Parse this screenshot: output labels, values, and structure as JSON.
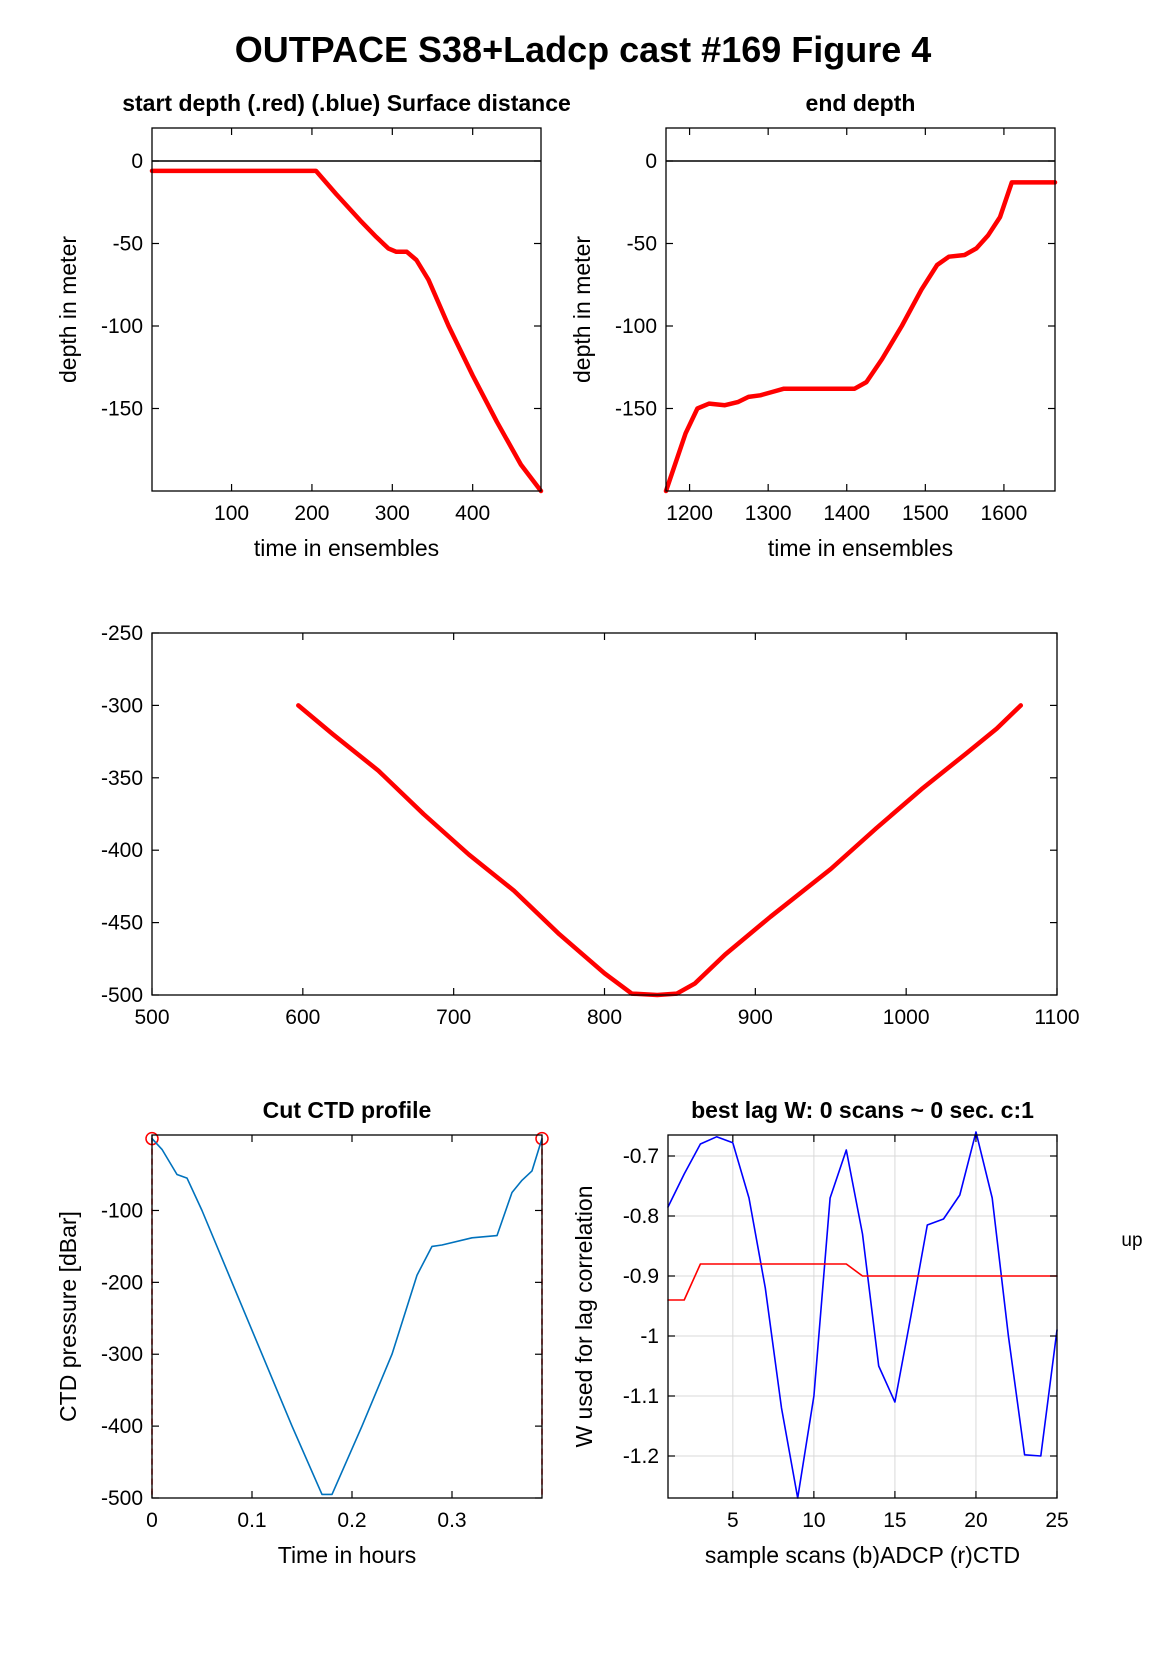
{
  "figure": {
    "title": "OUTPACE S38+Ladcp cast #169   Figure 4",
    "side_note": "up"
  },
  "chart_data": [
    {
      "id": "start-depth",
      "type": "line",
      "title": "start depth (.red) (.blue) Surface distance",
      "xlabel": "time in ensembles",
      "ylabel": "depth in meter",
      "xlim": [
        1,
        485
      ],
      "ylim": [
        -200,
        20
      ],
      "xticks": [
        100,
        200,
        300,
        400
      ],
      "yticks": [
        0,
        -50,
        -100,
        -150
      ],
      "grid": false,
      "reference_line_y": 0,
      "series": [
        {
          "color": "#ff0000",
          "x": [
            1,
            50,
            100,
            150,
            205,
            230,
            260,
            280,
            295,
            305,
            318,
            330,
            345,
            370,
            400,
            430,
            460,
            485
          ],
          "y": [
            -6,
            -6,
            -6,
            -6,
            -6,
            -20,
            -36,
            -46,
            -53,
            -55,
            -55,
            -60,
            -72,
            -100,
            -130,
            -158,
            -184,
            -200
          ]
        }
      ]
    },
    {
      "id": "end-depth",
      "type": "line",
      "title": "end depth",
      "xlabel": "time in ensembles",
      "ylabel": "depth in meter",
      "xlim": [
        1170,
        1665
      ],
      "ylim": [
        -200,
        20
      ],
      "xticks": [
        1200,
        1300,
        1400,
        1500,
        1600
      ],
      "yticks": [
        0,
        -50,
        -100,
        -150
      ],
      "grid": false,
      "reference_line_y": 0,
      "series": [
        {
          "color": "#ff0000",
          "x": [
            1170,
            1195,
            1210,
            1225,
            1245,
            1262,
            1275,
            1290,
            1305,
            1320,
            1350,
            1380,
            1410,
            1425,
            1445,
            1470,
            1495,
            1515,
            1530,
            1550,
            1565,
            1580,
            1595,
            1610,
            1640,
            1665
          ],
          "y": [
            -200,
            -165,
            -150,
            -147,
            -148,
            -146,
            -143,
            -142,
            -140,
            -138,
            -138,
            -138,
            -138,
            -134,
            -120,
            -100,
            -78,
            -63,
            -58,
            -57,
            -53,
            -45,
            -34,
            -13,
            -13,
            -13
          ]
        }
      ]
    },
    {
      "id": "profile",
      "type": "line",
      "title": "",
      "xlabel": "",
      "ylabel": "",
      "xlim": [
        500,
        1100
      ],
      "ylim": [
        -500,
        -250
      ],
      "xticks": [
        500,
        600,
        700,
        800,
        900,
        1000,
        1100
      ],
      "yticks": [
        -250,
        -300,
        -350,
        -400,
        -450,
        -500
      ],
      "grid": false,
      "series": [
        {
          "color": "#ff0000",
          "x": [
            597,
            620,
            650,
            680,
            710,
            740,
            770,
            800,
            818,
            835,
            848,
            860,
            880,
            910,
            950,
            980,
            1010,
            1040,
            1060,
            1076
          ],
          "y": [
            -300,
            -320,
            -345,
            -375,
            -403,
            -428,
            -458,
            -485,
            -499,
            -500,
            -499,
            -492,
            -472,
            -446,
            -413,
            -385,
            -358,
            -333,
            -316,
            -300
          ]
        }
      ]
    },
    {
      "id": "cut-ctd",
      "type": "line",
      "title": "Cut CTD profile",
      "xlabel": "Time in hours",
      "ylabel": "CTD pressure [dBar]",
      "xlim": [
        0,
        0.39
      ],
      "ylim": [
        -500,
        5
      ],
      "xticks": [
        0,
        0.1,
        0.2,
        0.3
      ],
      "yticks": [
        -100,
        -200,
        -300,
        -400,
        -500
      ],
      "grid": false,
      "cut_markers": [
        [
          0,
          0
        ],
        [
          0.39,
          0
        ]
      ],
      "series": [
        {
          "color": "#0072bd",
          "x": [
            0,
            0.01,
            0.025,
            0.035,
            0.05,
            0.08,
            0.11,
            0.14,
            0.17,
            0.18,
            0.21,
            0.24,
            0.265,
            0.28,
            0.29,
            0.32,
            0.345,
            0.36,
            0.37,
            0.38,
            0.39
          ],
          "y": [
            0,
            -15,
            -50,
            -55,
            -100,
            -200,
            -300,
            -400,
            -495,
            -495,
            -400,
            -300,
            -190,
            -150,
            -148,
            -138,
            -135,
            -75,
            -58,
            -45,
            0
          ]
        }
      ]
    },
    {
      "id": "best-lag",
      "type": "line",
      "title": "best lag W: 0 scans ~ 0 sec.  c:1",
      "xlabel": "sample scans (b)ADCP (r)CTD",
      "ylabel": "W used for lag correlation",
      "xlim": [
        1,
        25
      ],
      "ylim": [
        -1.27,
        -0.665
      ],
      "xticks": [
        5,
        10,
        15,
        20,
        25
      ],
      "yticks": [
        -0.7,
        -0.8,
        -0.9,
        -1,
        -1.1,
        -1.2
      ],
      "grid": true,
      "series": [
        {
          "color": "#0000ff",
          "x": [
            1,
            2,
            3,
            4,
            5,
            6,
            7,
            8,
            9,
            10,
            11,
            12,
            13,
            14,
            15,
            16,
            17,
            18,
            19,
            20,
            21,
            22,
            23,
            24,
            25
          ],
          "y": [
            -0.785,
            -0.73,
            -0.68,
            -0.668,
            -0.678,
            -0.77,
            -0.92,
            -1.12,
            -1.27,
            -1.1,
            -0.77,
            -0.69,
            -0.83,
            -1.05,
            -1.11,
            -0.965,
            -0.815,
            -0.805,
            -0.765,
            -0.66,
            -0.77,
            -1.0,
            -1.198,
            -1.2,
            -0.99
          ]
        },
        {
          "color": "#ff0000",
          "x": [
            1,
            2,
            3,
            4,
            5,
            6,
            7,
            8,
            9,
            10,
            11,
            12,
            13,
            14,
            15,
            16,
            17,
            18,
            19,
            20,
            21,
            22,
            23,
            24,
            25
          ],
          "y": [
            -0.94,
            -0.94,
            -0.88,
            -0.88,
            -0.88,
            -0.88,
            -0.88,
            -0.88,
            -0.88,
            -0.88,
            -0.88,
            -0.88,
            -0.9,
            -0.9,
            -0.9,
            -0.9,
            -0.9,
            -0.9,
            -0.9,
            -0.9,
            -0.9,
            -0.9,
            -0.9,
            -0.9,
            -0.9
          ]
        }
      ]
    }
  ]
}
